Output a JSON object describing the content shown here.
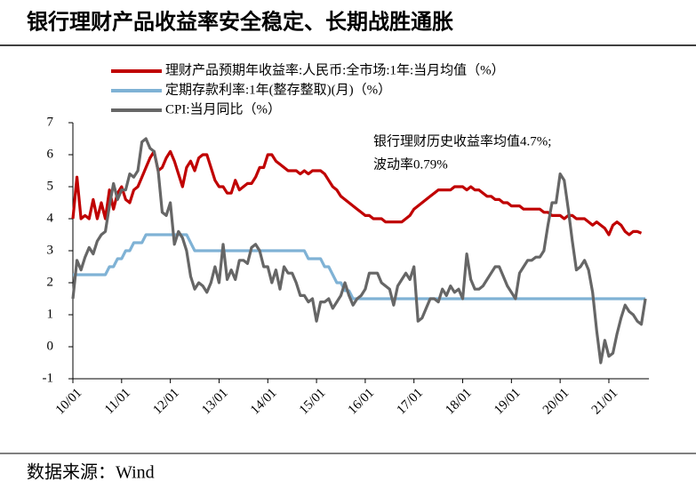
{
  "chart_data": {
    "type": "line",
    "title": "银行理财产品收益率安全稳定、长期战胜通胀",
    "source": "数据来源：Wind",
    "annotations": [
      "银行理财历史收益率均值4.7%;",
      "波动率0.79%"
    ],
    "categories": [
      "10/01",
      null,
      null,
      null,
      null,
      null,
      null,
      null,
      null,
      null,
      null,
      null,
      "11/01",
      null,
      null,
      null,
      null,
      null,
      null,
      null,
      null,
      null,
      null,
      null,
      "12/01",
      null,
      null,
      null,
      null,
      null,
      null,
      null,
      null,
      null,
      null,
      null,
      "13/01",
      null,
      null,
      null,
      null,
      null,
      null,
      null,
      null,
      null,
      null,
      null,
      "14/01",
      null,
      null,
      null,
      null,
      null,
      null,
      null,
      null,
      null,
      null,
      null,
      "15/01",
      null,
      null,
      null,
      null,
      null,
      null,
      null,
      null,
      null,
      null,
      null,
      "16/01",
      null,
      null,
      null,
      null,
      null,
      null,
      null,
      null,
      null,
      null,
      null,
      "17/01",
      null,
      null,
      null,
      null,
      null,
      null,
      null,
      null,
      null,
      null,
      null,
      "18/01",
      null,
      null,
      null,
      null,
      null,
      null,
      null,
      null,
      null,
      null,
      null,
      "19/01",
      null,
      null,
      null,
      null,
      null,
      null,
      null,
      null,
      null,
      null,
      null,
      "20/01",
      null,
      null,
      null,
      null,
      null,
      null,
      null,
      null,
      null,
      null,
      null,
      "21/01",
      null,
      null,
      null,
      null,
      null,
      null,
      null,
      null,
      null
    ],
    "series": [
      {
        "name": "理财产品预期年收益率:人民币:全市场:1年:当月均值（%）",
        "color": "#c00000",
        "values": [
          4.0,
          5.3,
          4.0,
          4.1,
          4.0,
          4.6,
          4.0,
          4.5,
          4.0,
          4.9,
          4.3,
          4.8,
          5.0,
          4.6,
          4.5,
          4.9,
          5.0,
          5.3,
          5.6,
          5.9,
          6.1,
          5.5,
          5.6,
          5.9,
          6.1,
          5.8,
          5.4,
          5.0,
          5.6,
          5.8,
          5.5,
          5.9,
          6.0,
          6.0,
          5.6,
          5.2,
          5.0,
          5.0,
          4.8,
          4.8,
          5.2,
          4.9,
          5.0,
          5.1,
          5.1,
          5.3,
          5.6,
          5.6,
          6.0,
          6.0,
          5.8,
          5.7,
          5.6,
          5.5,
          5.5,
          5.5,
          5.4,
          5.5,
          5.4,
          5.5,
          5.5,
          5.5,
          5.4,
          5.2,
          5.0,
          4.9,
          4.7,
          4.6,
          4.5,
          4.4,
          4.3,
          4.2,
          4.1,
          4.1,
          4.0,
          4.0,
          4.0,
          3.9,
          3.9,
          3.9,
          3.9,
          3.9,
          4.0,
          4.1,
          4.3,
          4.4,
          4.5,
          4.6,
          4.7,
          4.8,
          4.9,
          4.9,
          4.9,
          4.9,
          5.0,
          5.0,
          5.0,
          4.9,
          5.0,
          4.9,
          4.9,
          4.8,
          4.7,
          4.7,
          4.6,
          4.6,
          4.5,
          4.5,
          4.4,
          4.4,
          4.4,
          4.3,
          4.3,
          4.3,
          4.3,
          4.3,
          4.2,
          4.2,
          4.1,
          4.1,
          4.1,
          4.0,
          4.1,
          4.1,
          4.0,
          4.0,
          4.0,
          3.9,
          3.8,
          3.9,
          3.8,
          3.7,
          3.5,
          3.8,
          3.9,
          3.8,
          3.6,
          3.5,
          3.6,
          3.6,
          3.55,
          null
        ]
      },
      {
        "name": "定期存款利率:1年(整存整取)(月)（%）",
        "color": "#7fb2d5",
        "values": [
          2.25,
          2.25,
          2.25,
          2.25,
          2.25,
          2.25,
          2.25,
          2.25,
          2.25,
          2.5,
          2.5,
          2.75,
          2.75,
          3.0,
          3.0,
          3.25,
          3.25,
          3.25,
          3.5,
          3.5,
          3.5,
          3.5,
          3.5,
          3.5,
          3.5,
          3.5,
          3.5,
          3.5,
          3.5,
          3.25,
          3.0,
          3.0,
          3.0,
          3.0,
          3.0,
          3.0,
          3.0,
          3.0,
          3.0,
          3.0,
          3.0,
          3.0,
          3.0,
          3.0,
          3.0,
          3.0,
          3.0,
          3.0,
          3.0,
          3.0,
          3.0,
          3.0,
          3.0,
          3.0,
          3.0,
          3.0,
          3.0,
          3.0,
          2.75,
          2.75,
          2.75,
          2.75,
          2.5,
          2.5,
          2.25,
          2.0,
          2.0,
          1.75,
          1.75,
          1.5,
          1.5,
          1.5,
          1.5,
          1.5,
          1.5,
          1.5,
          1.5,
          1.5,
          1.5,
          1.5,
          1.5,
          1.5,
          1.5,
          1.5,
          1.5,
          1.5,
          1.5,
          1.5,
          1.5,
          1.5,
          1.5,
          1.5,
          1.5,
          1.5,
          1.5,
          1.5,
          1.5,
          1.5,
          1.5,
          1.5,
          1.5,
          1.5,
          1.5,
          1.5,
          1.5,
          1.5,
          1.5,
          1.5,
          1.5,
          1.5,
          1.5,
          1.5,
          1.5,
          1.5,
          1.5,
          1.5,
          1.5,
          1.5,
          1.5,
          1.5,
          1.5,
          1.5,
          1.5,
          1.5,
          1.5,
          1.5,
          1.5,
          1.5,
          1.5,
          1.5,
          1.5,
          1.5,
          1.5,
          1.5,
          1.5,
          1.5,
          1.5,
          1.5,
          1.5,
          1.5,
          1.5,
          1.5
        ]
      },
      {
        "name": "CPI:当月同比（%）",
        "color": "#666666",
        "values": [
          1.5,
          2.7,
          2.4,
          2.8,
          3.1,
          2.9,
          3.3,
          3.5,
          3.6,
          4.4,
          5.1,
          4.6,
          4.9,
          4.9,
          5.4,
          5.3,
          5.5,
          6.4,
          6.5,
          6.2,
          6.1,
          5.5,
          4.2,
          4.1,
          4.5,
          3.2,
          3.6,
          3.4,
          3.0,
          2.2,
          1.8,
          2.0,
          1.9,
          1.7,
          2.0,
          2.5,
          2.0,
          3.2,
          2.1,
          2.4,
          2.1,
          2.7,
          2.7,
          2.6,
          3.1,
          3.2,
          3.0,
          2.5,
          2.5,
          2.0,
          2.4,
          1.8,
          2.5,
          2.3,
          2.3,
          2.0,
          1.6,
          1.6,
          1.4,
          1.5,
          0.8,
          1.4,
          1.4,
          1.5,
          1.2,
          1.4,
          1.6,
          2.0,
          1.6,
          1.3,
          1.5,
          1.6,
          1.8,
          2.3,
          2.3,
          2.3,
          2.0,
          1.9,
          1.8,
          1.3,
          1.9,
          2.1,
          2.3,
          2.1,
          2.5,
          0.8,
          0.9,
          1.2,
          1.5,
          1.5,
          1.4,
          1.8,
          1.6,
          1.9,
          1.7,
          1.8,
          1.5,
          2.9,
          2.1,
          1.8,
          1.8,
          1.9,
          2.1,
          2.3,
          2.5,
          2.5,
          2.2,
          1.9,
          1.7,
          1.5,
          2.3,
          2.5,
          2.7,
          2.7,
          2.8,
          2.8,
          3.0,
          3.8,
          4.5,
          4.5,
          5.4,
          5.2,
          4.3,
          3.3,
          2.4,
          2.5,
          2.7,
          2.4,
          1.7,
          0.5,
          -0.5,
          0.2,
          -0.3,
          -0.2,
          0.4,
          0.9,
          1.3,
          1.1,
          1.0,
          0.8,
          0.7,
          1.5
        ]
      }
    ],
    "ylim": [
      -1,
      7
    ],
    "yticks": [
      -1,
      0,
      1,
      2,
      3,
      4,
      5,
      6,
      7
    ],
    "grid": false
  }
}
